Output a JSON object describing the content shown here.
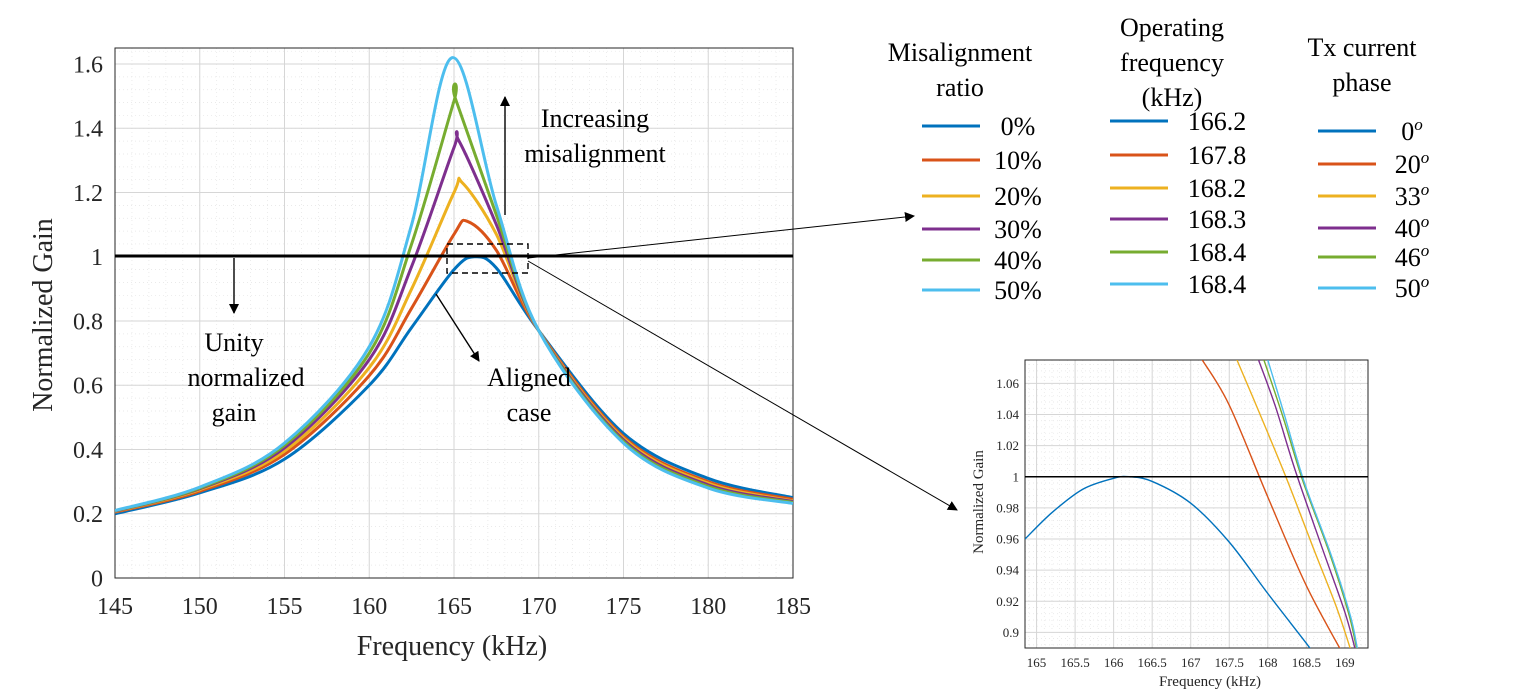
{
  "colors": [
    "#0072BD",
    "#D95319",
    "#EDB120",
    "#7E2F8E",
    "#77AC30",
    "#4DBEEE"
  ],
  "legend_table": {
    "columns": [
      {
        "header": [
          "Misalignment",
          "ratio"
        ],
        "values": [
          "0%",
          "10%",
          "20%",
          "30%",
          "40%",
          "50%"
        ]
      },
      {
        "header": [
          "Operating",
          "frequency",
          "(kHz)"
        ],
        "values": [
          "166.2",
          "167.8",
          "168.2",
          "168.3",
          "168.4",
          "168.4"
        ]
      },
      {
        "header": [
          "Tx current",
          "phase"
        ],
        "values": [
          "0",
          "20",
          "33",
          "40",
          "46",
          "50"
        ],
        "superscript": "o"
      }
    ]
  },
  "annotations": {
    "increasing": [
      "Increasing",
      "misalignment"
    ],
    "unity": [
      "Unity",
      "normalized",
      "gain"
    ],
    "aligned": [
      "Aligned",
      "case"
    ]
  },
  "chart_data": [
    {
      "type": "line",
      "xlabel": "Frequency (kHz)",
      "ylabel": "Normalized Gain",
      "xlim": [
        145,
        185
      ],
      "ylim": [
        0,
        1.65
      ],
      "xticks": [
        145,
        150,
        155,
        160,
        165,
        170,
        175,
        180,
        185
      ],
      "yticks": [
        0,
        0.2,
        0.4,
        0.6,
        0.8,
        1,
        1.2,
        1.4,
        1.6
      ],
      "ytick_labels": [
        "0",
        "0.2",
        "0.4",
        "0.6",
        "0.8",
        "1",
        "1.2",
        "1.4",
        "1.6"
      ],
      "grid": true,
      "minor_grid": true,
      "reference_line": {
        "y": 1
      },
      "series": [
        {
          "peak_x": 166.2,
          "peak_y": 1.0,
          "x": [
            145,
            150,
            155,
            160,
            162.5,
            165,
            166.2,
            167.5,
            170,
            175,
            180,
            185
          ],
          "y": [
            0.2,
            0.265,
            0.37,
            0.6,
            0.78,
            0.96,
            1.0,
            0.965,
            0.77,
            0.45,
            0.31,
            0.25
          ]
        },
        {
          "peak_x": 165.8,
          "peak_y": 1.11,
          "x": [
            145,
            150,
            155,
            160,
            162.5,
            165,
            165.8,
            167.5,
            170,
            175,
            180,
            185
          ],
          "y": [
            0.205,
            0.27,
            0.385,
            0.63,
            0.84,
            1.07,
            1.11,
            1.02,
            0.77,
            0.44,
            0.3,
            0.245
          ]
        },
        {
          "peak_x": 165.5,
          "peak_y": 1.23,
          "x": [
            145,
            150,
            155,
            160,
            162.5,
            165,
            165.5,
            167.5,
            170,
            175,
            180,
            185
          ],
          "y": [
            0.207,
            0.275,
            0.395,
            0.655,
            0.9,
            1.2,
            1.23,
            1.07,
            0.77,
            0.435,
            0.295,
            0.24
          ]
        },
        {
          "peak_x": 165.3,
          "peak_y": 1.36,
          "x": [
            145,
            150,
            155,
            160,
            162.5,
            165,
            165.3,
            167.5,
            170,
            175,
            180,
            185
          ],
          "y": [
            0.208,
            0.278,
            0.405,
            0.68,
            0.97,
            1.34,
            1.36,
            1.1,
            0.77,
            0.43,
            0.29,
            0.238
          ]
        },
        {
          "peak_x": 165.1,
          "peak_y": 1.49,
          "x": [
            145,
            150,
            155,
            160,
            162.5,
            165,
            165.1,
            167.5,
            170,
            175,
            180,
            185
          ],
          "y": [
            0.209,
            0.28,
            0.413,
            0.7,
            1.04,
            1.485,
            1.49,
            1.13,
            0.77,
            0.425,
            0.285,
            0.235
          ]
        },
        {
          "peak_x": 164.9,
          "peak_y": 1.62,
          "x": [
            145,
            150,
            155,
            160,
            162.5,
            164.9,
            167.5,
            170,
            175,
            180,
            185
          ],
          "y": [
            0.21,
            0.283,
            0.42,
            0.72,
            1.1,
            1.62,
            1.16,
            0.77,
            0.42,
            0.28,
            0.232
          ]
        }
      ]
    },
    {
      "type": "line",
      "xlabel": "Frequency (kHz)",
      "ylabel": "Normalized Gain",
      "xlim": [
        164.85,
        169.3
      ],
      "ylim": [
        0.89,
        1.075
      ],
      "xticks": [
        165,
        165.5,
        166,
        166.5,
        167,
        167.5,
        168,
        168.5,
        169
      ],
      "yticks": [
        0.9,
        0.92,
        0.94,
        0.96,
        0.98,
        1,
        1.02,
        1.04,
        1.06
      ],
      "ytick_labels": [
        "0.9",
        "0.92",
        "0.94",
        "0.96",
        "0.98",
        "1",
        "1.02",
        "1.04",
        "1.06"
      ],
      "grid": true,
      "minor_grid": true,
      "reference_line": {
        "y": 1
      },
      "series": [
        {
          "x": [
            164.85,
            165.2,
            165.6,
            166.0,
            166.2,
            166.5,
            167.0,
            167.5,
            168.0,
            168.5,
            168.6
          ],
          "y": [
            0.96,
            0.977,
            0.992,
            0.999,
            1.0,
            0.997,
            0.983,
            0.958,
            0.925,
            0.893,
            0.886
          ]
        },
        {
          "x": [
            167.15,
            167.5,
            168.0,
            168.5,
            169.0,
            169.05
          ],
          "y": [
            1.075,
            1.046,
            0.987,
            0.93,
            0.884,
            0.88
          ]
        },
        {
          "x": [
            167.6,
            167.9,
            168.25,
            168.6,
            168.9,
            169.1
          ],
          "y": [
            1.075,
            1.04,
            0.998,
            0.953,
            0.915,
            0.885
          ]
        },
        {
          "x": [
            167.88,
            168.1,
            168.35,
            168.7,
            169.0,
            169.15
          ],
          "y": [
            1.075,
            1.045,
            1.005,
            0.955,
            0.913,
            0.886
          ]
        },
        {
          "x": [
            167.95,
            168.2,
            168.45,
            168.8,
            169.05,
            169.15
          ],
          "y": [
            1.075,
            1.038,
            0.998,
            0.951,
            0.912,
            0.89
          ]
        },
        {
          "x": [
            168.0,
            168.22,
            168.47,
            168.82,
            169.07,
            169.16
          ],
          "y": [
            1.075,
            1.039,
            0.997,
            0.95,
            0.911,
            0.89
          ]
        }
      ]
    }
  ]
}
